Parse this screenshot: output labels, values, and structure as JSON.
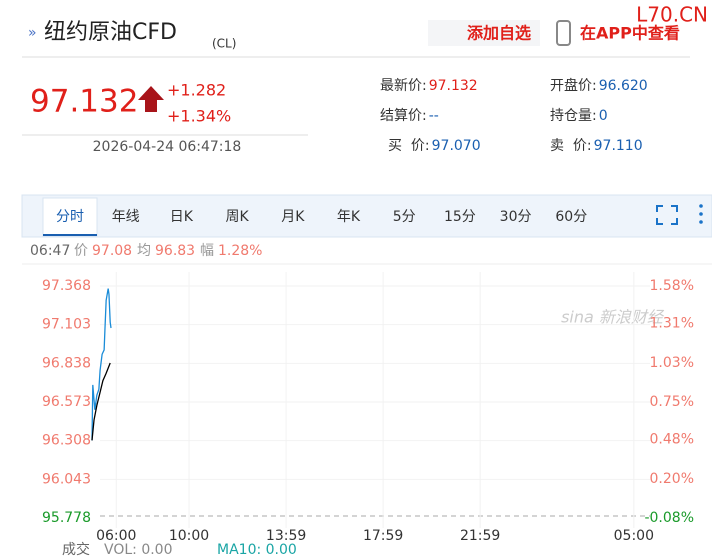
{
  "header": {
    "title": "纽约原油CFD",
    "code": "(CL)",
    "add_watchlist": "添加自选",
    "view_in_app": "在APP中查看",
    "site": "L70.CN"
  },
  "quote": {
    "price": "97.132",
    "change": "+1.282",
    "change_pct": "+1.34%",
    "time": "2026-04-24 06:47:18"
  },
  "fields": [
    {
      "label": "最新价:",
      "value": "97.132"
    },
    {
      "label": "开盘价:",
      "value": "96.620"
    },
    {
      "label": "结算价:",
      "value": "--"
    },
    {
      "label": "持仓量:",
      "value": "0"
    },
    {
      "label": "买  价:",
      "value": "97.070"
    },
    {
      "label": "卖  价:",
      "value": "97.110"
    }
  ],
  "tabs": [
    "分时",
    "年线",
    "日K",
    "周K",
    "月K",
    "年K",
    "5分",
    "15分",
    "30分",
    "60分"
  ],
  "info": {
    "time": "06:47",
    "price_label": "价",
    "price": "97.08",
    "avg_label": "均",
    "avg": "96.83",
    "amp_label": "幅",
    "amp": "1.28%"
  },
  "chart_data": {
    "type": "line",
    "watermark": "sina 新浪财经",
    "xlim": [
      0,
      1380
    ],
    "xticks": [
      {
        "value": 60,
        "label": "06:00"
      },
      {
        "value": 240,
        "label": "10:00"
      },
      {
        "value": 480,
        "label": "13:59"
      },
      {
        "value": 720,
        "label": "17:59"
      },
      {
        "value": 960,
        "label": "21:59"
      },
      {
        "value": 1340,
        "label": "05:00"
      }
    ],
    "ylim": [
      95.778,
      97.368
    ],
    "yticks": [
      97.368,
      97.103,
      96.838,
      96.573,
      96.308,
      96.043,
      95.778
    ],
    "y2lim": [
      -0.08,
      1.58
    ],
    "y2ticks": [
      {
        "value": 1.58,
        "label": "1.58%"
      },
      {
        "value": 1.31,
        "label": "1.31%"
      },
      {
        "value": 1.03,
        "label": "1.03%"
      },
      {
        "value": 0.75,
        "label": "0.75%"
      },
      {
        "value": 0.48,
        "label": "0.48%"
      },
      {
        "value": 0.2,
        "label": "0.20%"
      },
      {
        "value": -0.08,
        "label": "-0.08%"
      }
    ],
    "grid": true,
    "series": [
      {
        "color": "#1a8cd8",
        "x": [
          0,
          2,
          7,
          12,
          17,
          20,
          25,
          30,
          32,
          35,
          40,
          42,
          45,
          47
        ],
        "values": [
          96.31,
          96.69,
          96.52,
          96.62,
          96.66,
          96.79,
          96.9,
          96.93,
          97.07,
          97.27,
          97.35,
          97.31,
          97.12,
          97.08
        ]
      },
      {
        "color": "#000000",
        "x": [
          0,
          5,
          12,
          20,
          27,
          35,
          45
        ],
        "values": [
          96.31,
          96.45,
          96.55,
          96.64,
          96.72,
          96.77,
          96.84
        ]
      }
    ]
  },
  "volume": {
    "label": "成交",
    "vol": "VOL: 0.00",
    "ma10": "MA10: 0.00"
  }
}
